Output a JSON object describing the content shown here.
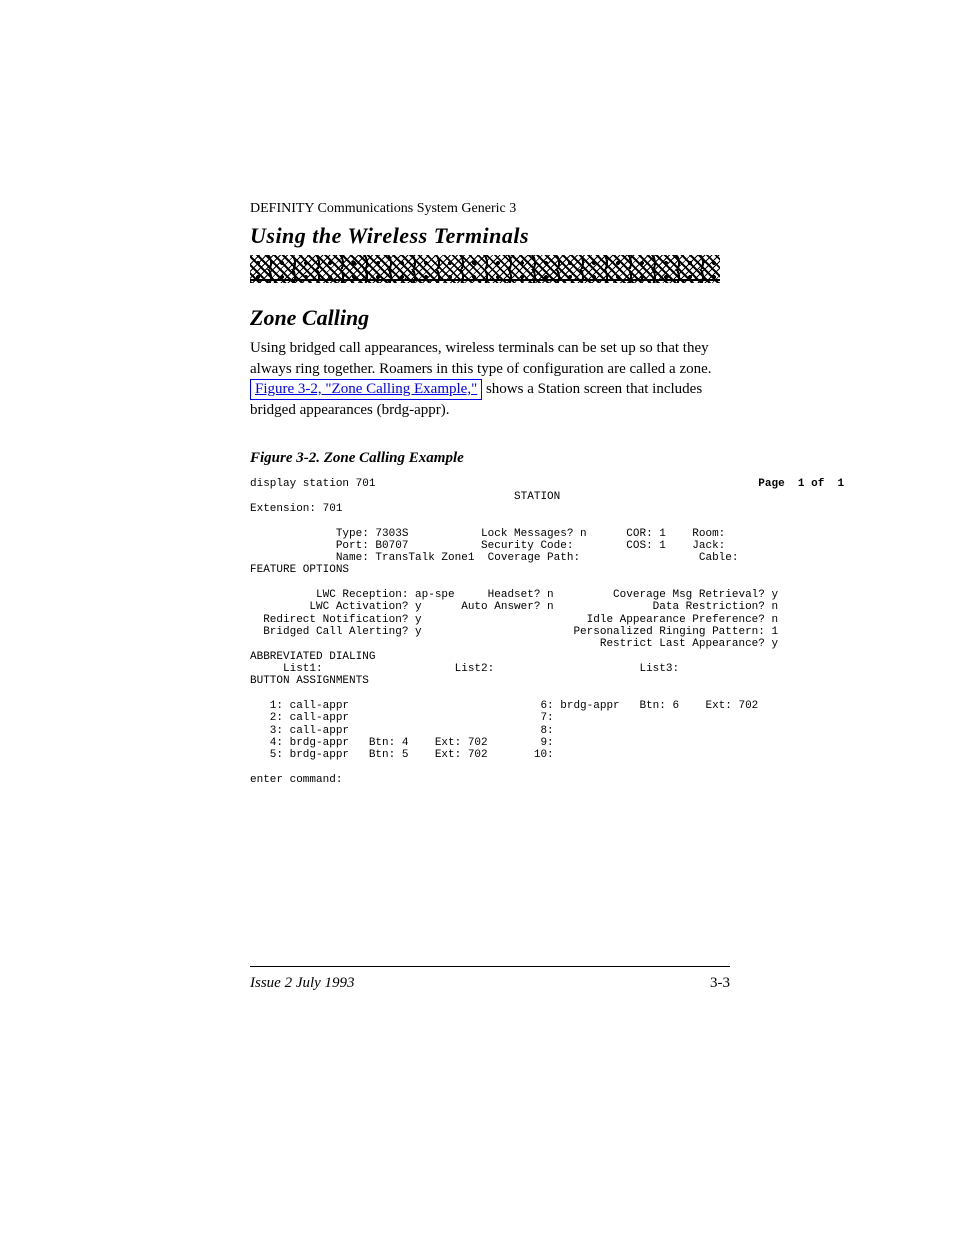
{
  "section": {
    "series_line": "DEFINITY Communications System Generic 3",
    "title_plain": "Using the Wireless Terminals",
    "subhead": "Zone Calling",
    "para1_pre": "Using bridged call appearances, wireless terminals can be set up so that they always ring together. Roamers in this type of configuration are called a zone. ",
    "link_text": "Figure 3-2, \"Zone Calling Example,\"",
    "para1_post": " shows a Station screen that includes bridged appearances (brdg-appr).",
    "figure_caption": "Figure 3-2. Zone Calling Example"
  },
  "terminal": {
    "cmd": "display station 701",
    "page_label": "Page  1 of  1",
    "header": "STATION",
    "ext_line": "Extension: 701",
    "row_type": "             Type: 7303S           Lock Messages? n      COR: 1    Room:",
    "row_port": "             Port: B0707           Security Code:        COS: 1    Jack:",
    "row_name": "             Name: TransTalk Zone1  Coverage Path:                  Cable:",
    "feature_hdr": "FEATURE OPTIONS",
    "row_lwc_rec": "          LWC Reception: ap-spe     Headset? n         Coverage Msg Retrieval? y",
    "row_lwc_act": "         LWC Activation? y      Auto Answer? n               Data Restriction? n",
    "row_redir": "  Redirect Notification? y                         Idle Appearance Preference? n",
    "row_bridged": "  Bridged Call Alerting? y                       Personalized Ringing Pattern: 1",
    "row_restrict": "                                                     Restrict Last Appearance? y",
    "abbrev_hdr": "ABBREVIATED DIALING",
    "row_lists": "     List1:                    List2:                      List3:",
    "btn_hdr": "BUTTON ASSIGNMENTS",
    "row_b1": "   1: call-appr                             6: brdg-appr   Btn: 6    Ext: 702",
    "row_b2": "   2: call-appr                             7:",
    "row_b3": "   3: call-appr                             8:",
    "row_b4": "   4: brdg-appr   Btn: 4    Ext: 702        9:",
    "row_b5": "   5: brdg-appr   Btn: 5    Ext: 702       10:",
    "prompt": "enter command:"
  },
  "footer": {
    "issue": "Issue 2   July 1993",
    "page": "3-3"
  }
}
